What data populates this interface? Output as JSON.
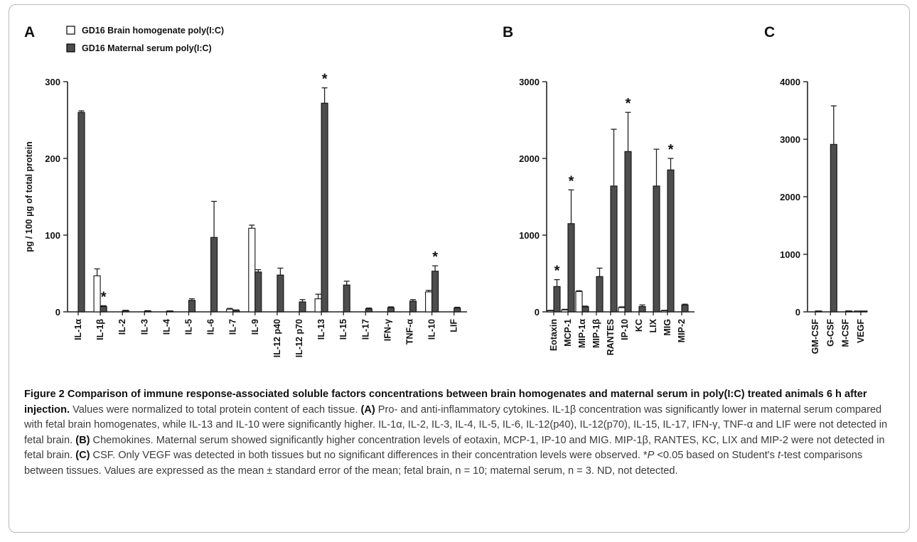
{
  "figure": {
    "legend": {
      "open": "GD16 Brain homogenate poly(I:C)",
      "filled": "GD16 Maternal serum poly(I:C)"
    },
    "colors": {
      "filled": "#4d4d4d",
      "open": "#ffffff",
      "stroke": "#000000"
    }
  },
  "chart_data": [
    {
      "panel": "A",
      "type": "bar",
      "ylabel": "pg / 100 µg of total protein",
      "ylim": [
        0,
        300
      ],
      "yticks": [
        "0",
        "100",
        "200",
        "300"
      ],
      "categories": [
        "IL-1α",
        "IL-1β",
        "IL-2",
        "IL-3",
        "IL-4",
        "IL-5",
        "IL-6",
        "IL-7",
        "IL-9",
        "IL-12 p40",
        "IL-12 p70",
        "IL-13",
        "IL-15",
        "IL-17",
        "IFN-γ",
        "TNF-α",
        "IL-10",
        "LIF"
      ],
      "series": [
        {
          "name": "GD16 Brain homogenate poly(I:C)",
          "style": "open",
          "values": [
            null,
            47,
            null,
            null,
            null,
            null,
            null,
            3.5,
            109,
            null,
            null,
            17,
            null,
            null,
            null,
            null,
            26,
            null
          ],
          "errors": [
            null,
            9,
            null,
            null,
            null,
            null,
            null,
            1,
            4,
            null,
            null,
            6,
            null,
            null,
            null,
            null,
            2,
            null
          ]
        },
        {
          "name": "GD16 Maternal serum poly(I:C)",
          "style": "filled",
          "values": [
            260,
            7,
            1.5,
            1.2,
            0.8,
            15,
            97,
            2,
            52,
            48,
            13,
            272,
            35,
            4,
            5.5,
            14,
            53,
            5
          ],
          "errors": [
            2,
            1,
            0.5,
            0.3,
            0.3,
            2,
            47,
            0.5,
            3,
            9,
            3,
            20,
            5,
            1,
            1,
            2,
            7,
            1
          ]
        }
      ],
      "significance": [
        "",
        "*",
        "",
        "",
        "",
        "",
        "",
        "",
        "",
        "",
        "",
        "*",
        "",
        "",
        "",
        "",
        "*",
        ""
      ]
    },
    {
      "panel": "B",
      "type": "bar",
      "ylim": [
        0,
        3000
      ],
      "yticks": [
        "0",
        "1000",
        "2000",
        "3000"
      ],
      "categories": [
        "Eotaxin",
        "MCP-1",
        "MIP-1α",
        "MIP-1β",
        "RANTES",
        "IP-10",
        "KC",
        "LIX",
        "MIG",
        "MIP-2"
      ],
      "series": [
        {
          "name": "GD16 Brain homogenate poly(I:C)",
          "style": "open",
          "values": [
            15,
            25,
            265,
            null,
            null,
            55,
            null,
            null,
            15,
            null
          ],
          "errors": [
            5,
            8,
            10,
            null,
            null,
            10,
            null,
            null,
            5,
            null
          ]
        },
        {
          "name": "GD16 Maternal serum poly(I:C)",
          "style": "filled",
          "values": [
            330,
            1150,
            65,
            460,
            1640,
            2090,
            70,
            1640,
            1850,
            90
          ],
          "errors": [
            90,
            440,
            10,
            110,
            740,
            510,
            20,
            480,
            150,
            10
          ]
        }
      ],
      "significance": [
        "*",
        "*",
        "",
        "",
        "",
        "*",
        "",
        "",
        "*",
        ""
      ]
    },
    {
      "panel": "C",
      "type": "bar",
      "ylim": [
        0,
        4000
      ],
      "yticks": [
        "0",
        "1000",
        "2000",
        "3000",
        "4000"
      ],
      "categories": [
        "GM-CSF",
        "G-CSF",
        "M-CSF",
        "VEGF"
      ],
      "series": [
        {
          "name": "GD16 Brain homogenate poly(I:C)",
          "style": "open",
          "values": [
            null,
            null,
            null,
            5
          ],
          "errors": [
            null,
            null,
            null,
            2
          ]
        },
        {
          "name": "GD16 Maternal serum poly(I:C)",
          "style": "filled",
          "values": [
            10,
            2910,
            12,
            5
          ],
          "errors": [
            3,
            670,
            3,
            2
          ]
        }
      ],
      "significance": [
        "",
        "",
        "",
        ""
      ]
    }
  ],
  "caption": {
    "title": "Figure 2 Comparison of immune response-associated soluble factors concentrations between brain homogenates and maternal serum in poly(I:C) treated animals 6 h after injection.",
    "s1": " Values were normalized to total protein content of each tissue. ",
    "a": "(A)",
    "s2": " Pro- and anti-inflammatory cytokines. IL-1β concentration was significantly lower in maternal serum compared with fetal brain homogenates, while IL-13 and IL-10 were significantly higher. IL-1α, IL-2, IL-3, IL-4, IL-5, IL-6, IL-12(p40), IL-12(p70), IL-15, IL-17, IFN-γ, TNF-α and LIF were not detected in fetal brain. ",
    "b": "(B)",
    "s3": " Chemokines. Maternal serum showed significantly higher concentration levels of eotaxin, MCP-1, IP-10 and MIG. MIP-1β, RANTES, KC, LIX and MIP-2 were not detected in fetal brain. ",
    "c": "(C)",
    "s4": " CSF. Only VEGF was detected in both tissues but no significant differences in their concentration levels were observed. *",
    "p": "P",
    "s5": " <0.05 based on Student's ",
    "t": "t",
    "s6": "-test comparisons between tissues. Values are expressed as the mean ± standard error of the mean; fetal brain, n = 10; maternal serum, n = 3. ND, not detected."
  }
}
